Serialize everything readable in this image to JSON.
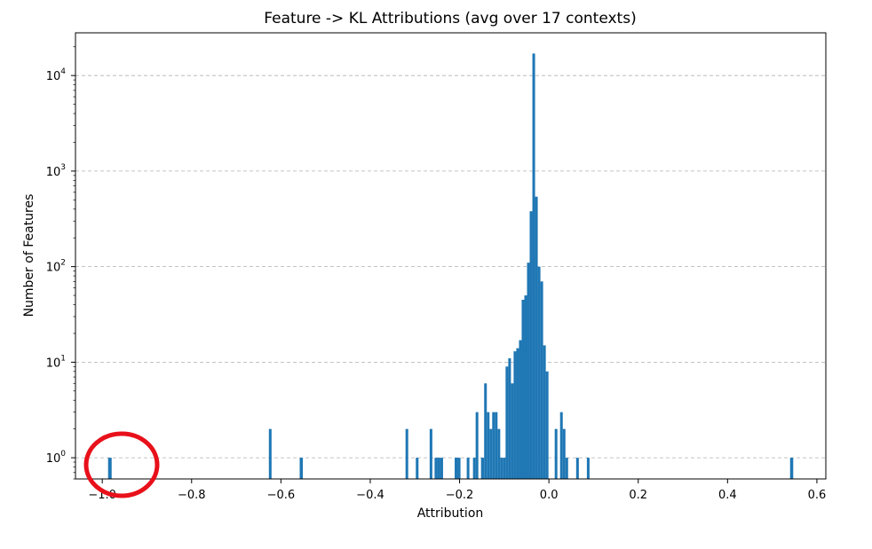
{
  "chart_data": {
    "type": "bar",
    "title": "Feature -> KL Attributions (avg over 17 contexts)",
    "xlabel": "Attribution",
    "ylabel": "Number of Features",
    "xlim": [
      -1.06,
      0.62
    ],
    "ylim": [
      0.6,
      28000
    ],
    "yscale": "log",
    "grid": "y-dashed",
    "bar_color": "#1f77b4",
    "annotation_color": "#e8101a",
    "xticks": [
      {
        "v": -1.0,
        "label": "−1.0"
      },
      {
        "v": -0.8,
        "label": "−0.8"
      },
      {
        "v": -0.6,
        "label": "−0.6"
      },
      {
        "v": -0.4,
        "label": "−0.4"
      },
      {
        "v": -0.2,
        "label": "−0.2"
      },
      {
        "v": 0.0,
        "label": "0.0"
      },
      {
        "v": 0.2,
        "label": "0.2"
      },
      {
        "v": 0.4,
        "label": "0.4"
      },
      {
        "v": 0.6,
        "label": "0.6"
      }
    ],
    "yticks": [
      {
        "v": 1,
        "base": "10",
        "exp": "0"
      },
      {
        "v": 10,
        "base": "10",
        "exp": "1"
      },
      {
        "v": 100,
        "base": "10",
        "exp": "2"
      },
      {
        "v": 1000,
        "base": "10",
        "exp": "3"
      },
      {
        "v": 10000,
        "base": "10",
        "exp": "4"
      }
    ],
    "bins": [
      {
        "x0": -0.987,
        "x1": -0.979,
        "count": 1
      },
      {
        "x0": -0.627,
        "x1": -0.621,
        "count": 2
      },
      {
        "x0": -0.558,
        "x1": -0.551,
        "count": 1
      },
      {
        "x0": -0.321,
        "x1": -0.315,
        "count": 2
      },
      {
        "x0": -0.298,
        "x1": -0.292,
        "count": 1
      },
      {
        "x0": -0.267,
        "x1": -0.261,
        "count": 2
      },
      {
        "x0": -0.256,
        "x1": -0.25,
        "count": 1
      },
      {
        "x0": -0.25,
        "x1": -0.244,
        "count": 1
      },
      {
        "x0": -0.244,
        "x1": -0.237,
        "count": 1
      },
      {
        "x0": -0.211,
        "x1": -0.205,
        "count": 1
      },
      {
        "x0": -0.205,
        "x1": -0.198,
        "count": 1
      },
      {
        "x0": -0.184,
        "x1": -0.178,
        "count": 1
      },
      {
        "x0": -0.17,
        "x1": -0.164,
        "count": 1
      },
      {
        "x0": -0.164,
        "x1": -0.158,
        "count": 3
      },
      {
        "x0": -0.152,
        "x1": -0.145,
        "count": 1
      },
      {
        "x0": -0.145,
        "x1": -0.139,
        "count": 6
      },
      {
        "x0": -0.139,
        "x1": -0.133,
        "count": 3
      },
      {
        "x0": -0.133,
        "x1": -0.127,
        "count": 2
      },
      {
        "x0": -0.127,
        "x1": -0.121,
        "count": 3
      },
      {
        "x0": -0.121,
        "x1": -0.115,
        "count": 3
      },
      {
        "x0": -0.115,
        "x1": -0.109,
        "count": 2
      },
      {
        "x0": -0.109,
        "x1": -0.103,
        "count": 1
      },
      {
        "x0": -0.103,
        "x1": -0.097,
        "count": 1
      },
      {
        "x0": -0.097,
        "x1": -0.091,
        "count": 9
      },
      {
        "x0": -0.091,
        "x1": -0.085,
        "count": 11
      },
      {
        "x0": -0.085,
        "x1": -0.079,
        "count": 6
      },
      {
        "x0": -0.079,
        "x1": -0.073,
        "count": 13
      },
      {
        "x0": -0.073,
        "x1": -0.067,
        "count": 14
      },
      {
        "x0": -0.067,
        "x1": -0.061,
        "count": 17
      },
      {
        "x0": -0.061,
        "x1": -0.055,
        "count": 45
      },
      {
        "x0": -0.055,
        "x1": -0.049,
        "count": 50
      },
      {
        "x0": -0.049,
        "x1": -0.043,
        "count": 110
      },
      {
        "x0": -0.043,
        "x1": -0.037,
        "count": 380
      },
      {
        "x0": -0.037,
        "x1": -0.031,
        "count": 17000
      },
      {
        "x0": -0.031,
        "x1": -0.025,
        "count": 540
      },
      {
        "x0": -0.025,
        "x1": -0.019,
        "count": 100
      },
      {
        "x0": -0.019,
        "x1": -0.013,
        "count": 70
      },
      {
        "x0": -0.013,
        "x1": -0.007,
        "count": 15
      },
      {
        "x0": -0.007,
        "x1": -0.001,
        "count": 8
      },
      {
        "x0": 0.013,
        "x1": 0.019,
        "count": 2
      },
      {
        "x0": 0.025,
        "x1": 0.031,
        "count": 3
      },
      {
        "x0": 0.031,
        "x1": 0.037,
        "count": 2
      },
      {
        "x0": 0.037,
        "x1": 0.043,
        "count": 1
      },
      {
        "x0": 0.061,
        "x1": 0.067,
        "count": 1
      },
      {
        "x0": 0.085,
        "x1": 0.091,
        "count": 1
      },
      {
        "x0": 0.54,
        "x1": 0.547,
        "count": 1
      }
    ]
  }
}
